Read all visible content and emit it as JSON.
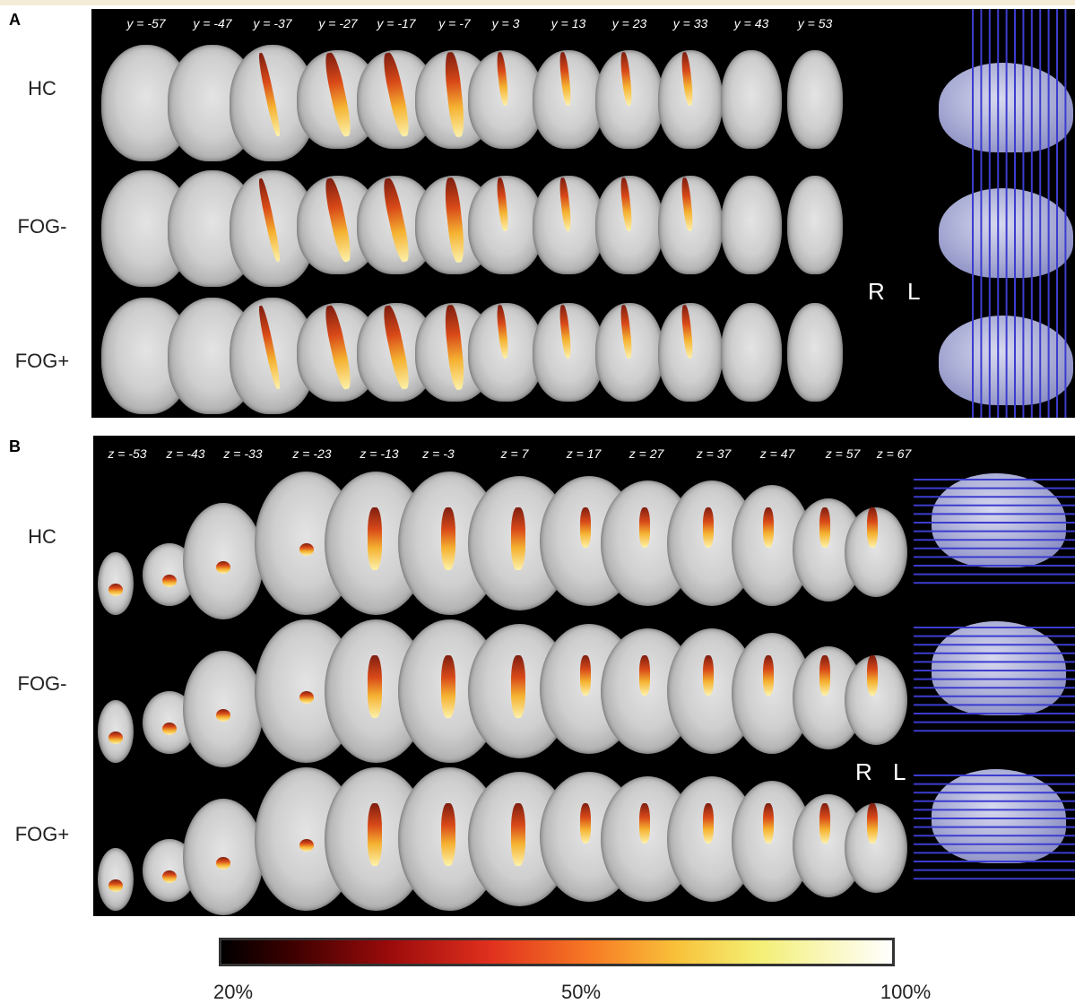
{
  "panel_a": {
    "letter": "A",
    "coords": [
      "y = -57",
      "y = -47",
      "y = -37",
      "y = -27",
      "y = -17",
      "y = -7",
      "y = 3",
      "y = 13",
      "y = 23",
      "y = 33",
      "y = 43",
      "y = 53"
    ],
    "rows": [
      "HC",
      "FOG-",
      "FOG+"
    ],
    "orientation": {
      "right": "R",
      "left": "L"
    }
  },
  "panel_b": {
    "letter": "B",
    "coords": [
      "z = -53",
      "z = -43",
      "z = -33",
      "z = -23",
      "z = -13",
      "z = -3",
      "z = 7",
      "z = 17",
      "z = 27",
      "z = 37",
      "z = 47",
      "z = 57",
      "z = 67"
    ],
    "rows": [
      "HC",
      "FOG-",
      "FOG+"
    ],
    "orientation": {
      "right": "R",
      "left": "L"
    }
  },
  "colorbar": {
    "ticks": [
      "20%",
      "50%",
      "100%"
    ],
    "colors": [
      "#000000",
      "#9b0b0b",
      "#e0301e",
      "#f77a24",
      "#f8c23a",
      "#f3ef74",
      "#ffffff"
    ]
  }
}
